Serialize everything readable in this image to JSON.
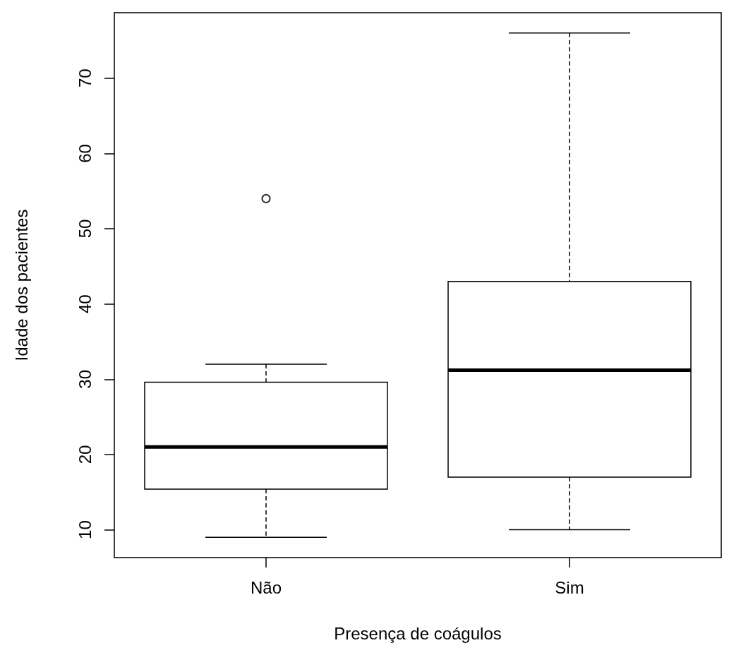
{
  "chart_data": {
    "type": "box",
    "xlabel": "Presença de coágulos",
    "ylabel": "Idade dos pacientes",
    "categories": [
      "Não",
      "Sim"
    ],
    "boxes": [
      {
        "low": 9,
        "q1": 15.4,
        "median": 21,
        "q3": 29.6,
        "high": 32,
        "outliers": [
          54
        ]
      },
      {
        "low": 10,
        "q1": 17,
        "median": 31.2,
        "q3": 43,
        "high": 76
      }
    ],
    "color": "#000000",
    "ylim": [
      6.3,
      78.7
    ],
    "yticks": [
      10,
      20,
      30,
      40,
      50,
      60,
      70
    ],
    "grid": false
  }
}
